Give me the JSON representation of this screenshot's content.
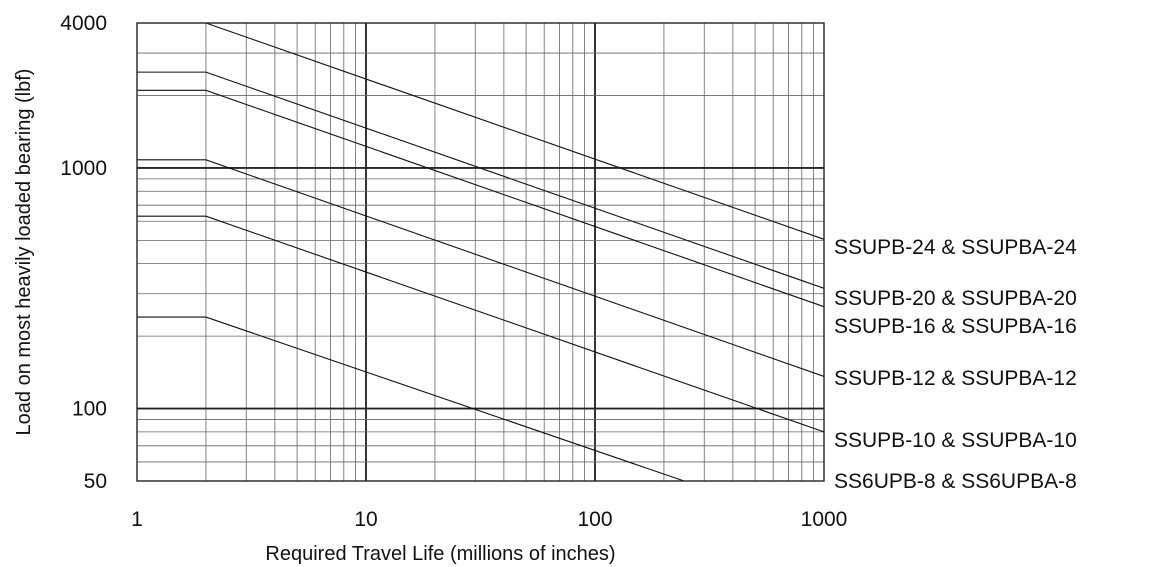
{
  "chart_data": {
    "type": "line",
    "xscale": "log",
    "yscale": "log",
    "xlim": [
      1,
      1000
    ],
    "ylim": [
      50,
      4000
    ],
    "xlabel": "Required Travel Life (millions of inches)",
    "ylabel": "Load on most heavily loaded bearing (lbf)",
    "xticks": [
      "1",
      "10",
      "100",
      "1000"
    ],
    "yticks": [
      "50",
      "100",
      "1000",
      "4000"
    ],
    "grid": true,
    "legend": "right, inline labels at line ends",
    "series": [
      {
        "name": "SSUPB-24 & SSUPBA-24",
        "points": [
          [
            1,
            4000
          ],
          [
            2,
            4000
          ],
          [
            1000,
            505
          ]
        ]
      },
      {
        "name": "SSUPB-20 & SSUPBA-20",
        "points": [
          [
            1,
            2500
          ],
          [
            2,
            2500
          ],
          [
            1000,
            316
          ]
        ]
      },
      {
        "name": "SSUPB-16 & SSUPBA-16",
        "points": [
          [
            1,
            2100
          ],
          [
            2,
            2100
          ],
          [
            1000,
            265
          ]
        ]
      },
      {
        "name": "SSUPB-12 & SSUPBA-12",
        "points": [
          [
            1,
            1080
          ],
          [
            2,
            1080
          ],
          [
            1000,
            136
          ]
        ]
      },
      {
        "name": "SSUPB-10 & SSUPBA-10",
        "points": [
          [
            1,
            630
          ],
          [
            2,
            630
          ],
          [
            1000,
            80
          ]
        ]
      },
      {
        "name": "SS6UPB-8 & SS6UPBA-8",
        "points": [
          [
            1,
            240
          ],
          [
            2,
            240
          ],
          [
            245,
            50
          ]
        ]
      }
    ]
  }
}
